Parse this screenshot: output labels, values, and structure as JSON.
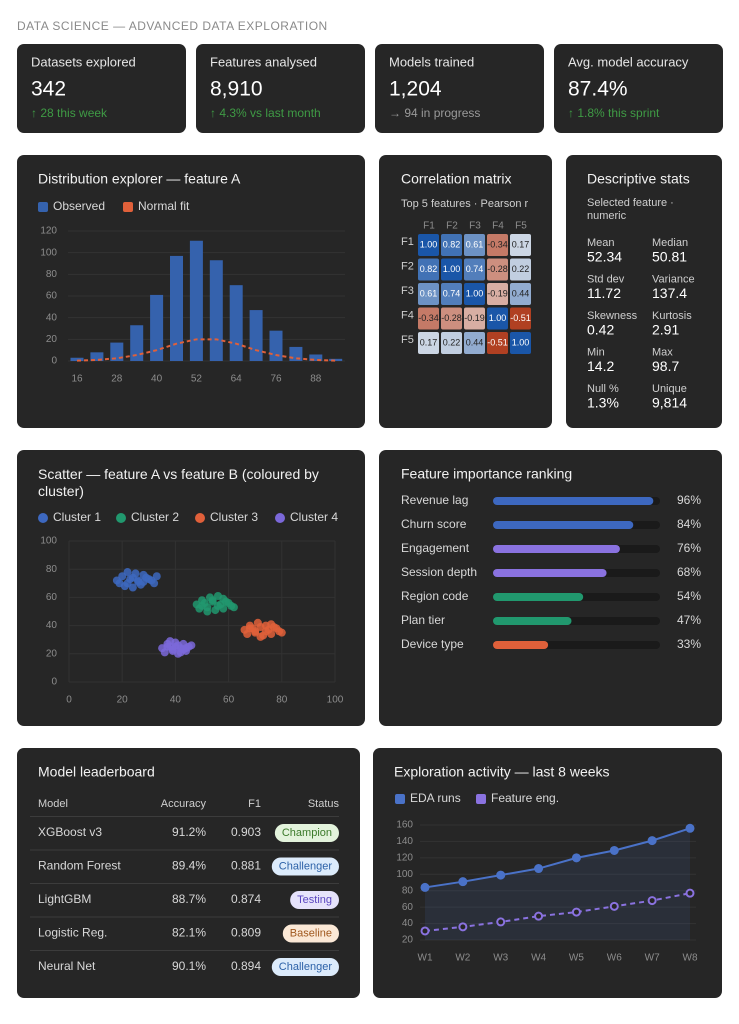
{
  "header": {
    "title": "DATA SCIENCE — ADVANCED DATA EXPLORATION"
  },
  "kpis": [
    {
      "label": "Datasets explored",
      "value": "342",
      "delta": "↑ 28 this week"
    },
    {
      "label": "Features analysed",
      "value": "8,910",
      "delta": "↑ 4.3% vs last month"
    },
    {
      "label": "Models trained",
      "value": "1,204",
      "delta": "→ 94 in progress"
    },
    {
      "label": "Avg. model accuracy",
      "value": "87.4%",
      "delta": "↑ 1.8% this sprint"
    }
  ],
  "stats": {
    "title": "Descriptive stats",
    "subtitle": "Selected feature · numeric",
    "items": [
      {
        "label": "Mean",
        "value": "52.34"
      },
      {
        "label": "Median",
        "value": "50.81"
      },
      {
        "label": "Std dev",
        "value": "11.72"
      },
      {
        "label": "Variance",
        "value": "137.4"
      },
      {
        "label": "Skewness",
        "value": "0.42"
      },
      {
        "label": "Kurtosis",
        "value": "2.91"
      },
      {
        "label": "Min",
        "value": "14.2"
      },
      {
        "label": "Max",
        "value": "98.7"
      },
      {
        "label": "Null %",
        "value": "1.3%"
      },
      {
        "label": "Unique",
        "value": "9,814"
      }
    ]
  },
  "leaderboard": {
    "title": "Model leaderboard",
    "columns": [
      "Model",
      "Accuracy",
      "F1",
      "Status"
    ],
    "rows": [
      [
        "XGBoost v3",
        "91.2%",
        "0.903",
        "Champion"
      ],
      [
        "Random Forest",
        "89.4%",
        "0.881",
        "Challenger"
      ],
      [
        "LightGBM",
        "88.7%",
        "0.874",
        "Testing"
      ],
      [
        "Logistic Reg.",
        "82.1%",
        "0.809",
        "Baseline"
      ],
      [
        "Neural Net",
        "90.1%",
        "0.894",
        "Challenger"
      ]
    ]
  },
  "chart_data": [
    {
      "type": "bar",
      "title": "Distribution explorer — feature A",
      "categories": [
        16,
        null,
        28,
        null,
        40,
        null,
        52,
        null,
        64,
        null,
        76,
        null,
        88,
        null
      ],
      "series": [
        {
          "name": "Observed",
          "color": "#3562ad",
          "values": [
            3,
            8,
            17,
            33,
            61,
            97,
            111,
            93,
            70,
            47,
            28,
            13,
            6,
            2
          ]
        },
        {
          "name": "Normal fit",
          "color": "#e0603a",
          "style": "dashed",
          "values": [
            0.3,
            1,
            2.5,
            5.5,
            10,
            16,
            20,
            20,
            16,
            10,
            5.5,
            2.5,
            1,
            0.3
          ]
        }
      ],
      "ylim": [
        0,
        120
      ],
      "yticks": [
        0,
        20,
        40,
        60,
        80,
        100,
        120
      ],
      "grid": true
    },
    {
      "type": "heatmap",
      "title": "Correlation matrix",
      "subtitle": "Top 5 features · Pearson r",
      "x": [
        "F1",
        "F2",
        "F3",
        "F4",
        "F5"
      ],
      "y": [
        "F1",
        "F2",
        "F3",
        "F4",
        "F5"
      ],
      "values": [
        [
          1,
          0.82,
          0.61,
          -0.34,
          0.17
        ],
        [
          0.82,
          1,
          0.74,
          -0.28,
          0.22
        ],
        [
          0.61,
          0.74,
          1,
          -0.19,
          0.44
        ],
        [
          -0.34,
          -0.28,
          -0.19,
          1,
          -0.51
        ],
        [
          0.17,
          0.22,
          0.44,
          -0.51,
          1
        ]
      ],
      "value_labels": [
        [
          "1.00",
          "0.82",
          "0.61",
          "-0.34",
          "0.17"
        ],
        [
          "0.82",
          "1.00",
          "0.74",
          "-0.28",
          "0.22"
        ],
        [
          "0.61",
          "0.74",
          "1.00",
          "-0.19",
          "0.44"
        ],
        [
          "-0.34",
          "-0.28",
          "-0.19",
          "1.00",
          "-0.51"
        ],
        [
          "0.17",
          "0.22",
          "0.44",
          "-0.51",
          "1.00"
        ]
      ]
    },
    {
      "type": "scatter",
      "title": "Scatter — feature A vs feature B (coloured by cluster)",
      "series": [
        {
          "name": "Cluster 1",
          "color": "#3d68c0",
          "x": [
            18,
            20,
            22,
            24,
            26,
            28,
            30,
            32,
            21,
            23,
            25,
            27,
            29,
            31,
            19,
            24,
            28,
            33,
            22,
            26
          ],
          "y": [
            72,
            75,
            70,
            74,
            71,
            76,
            73,
            70,
            68,
            73,
            77,
            69,
            74,
            72,
            70,
            67,
            71,
            75,
            78,
            72
          ]
        },
        {
          "name": "Cluster 2",
          "color": "#21986e",
          "x": [
            48,
            50,
            52,
            54,
            56,
            58,
            60,
            62,
            49,
            51,
            53,
            55,
            57,
            59,
            61,
            50,
            54,
            58,
            52,
            56
          ],
          "y": [
            55,
            58,
            53,
            57,
            54,
            59,
            56,
            53,
            52,
            56,
            60,
            51,
            55,
            57,
            54,
            54,
            58,
            52,
            50,
            61
          ]
        },
        {
          "name": "Cluster 3",
          "color": "#e0603a",
          "x": [
            66,
            68,
            70,
            72,
            74,
            76,
            78,
            80,
            67,
            69,
            71,
            73,
            75,
            77,
            79,
            70,
            74,
            72,
            68,
            76
          ],
          "y": [
            37,
            40,
            35,
            39,
            36,
            41,
            38,
            35,
            34,
            38,
            42,
            33,
            37,
            39,
            36,
            36,
            40,
            32,
            38,
            34
          ]
        },
        {
          "name": "Cluster 4",
          "color": "#7b68d9",
          "x": [
            35,
            37,
            39,
            41,
            43,
            45,
            36,
            38,
            40,
            42,
            44,
            46,
            37,
            41,
            43,
            39,
            40,
            38,
            42,
            44
          ],
          "y": [
            24,
            27,
            22,
            26,
            23,
            25,
            21,
            25,
            28,
            24,
            22,
            26,
            25,
            20,
            27,
            23,
            25,
            29,
            21,
            24
          ]
        }
      ],
      "xlim": [
        0,
        100
      ],
      "xticks": [
        0,
        20,
        40,
        60,
        80,
        100
      ],
      "ylim": [
        0,
        100
      ],
      "yticks": [
        0,
        20,
        40,
        60,
        80,
        100
      ],
      "grid": true
    },
    {
      "type": "hbar",
      "title": "Feature importance ranking",
      "categories": [
        "Revenue lag",
        "Churn score",
        "Engagement",
        "Session depth",
        "Region code",
        "Plan tier",
        "Device type"
      ],
      "values": [
        96,
        84,
        76,
        68,
        54,
        47,
        33
      ],
      "value_labels": [
        "96%",
        "84%",
        "76%",
        "68%",
        "54%",
        "47%",
        "33%"
      ],
      "colors": [
        "#3d68c0",
        "#3d68c0",
        "#8a72e0",
        "#8a72e0",
        "#21986e",
        "#21986e",
        "#e0603a"
      ],
      "xlim": [
        0,
        100
      ]
    },
    {
      "type": "line",
      "title": "Exploration activity — last 8 weeks",
      "categories": [
        "W1",
        "W2",
        "W3",
        "W4",
        "W5",
        "W6",
        "W7",
        "W8"
      ],
      "series": [
        {
          "name": "EDA runs",
          "color": "#4a72c8",
          "values": [
            84,
            91,
            99,
            107,
            120,
            129,
            141,
            156
          ]
        },
        {
          "name": "Feature eng.",
          "color": "#8a72e0",
          "style": "dashed",
          "values": [
            31,
            36,
            42,
            49,
            54,
            61,
            68,
            77
          ]
        }
      ],
      "ylim": [
        20,
        160
      ],
      "yticks": [
        20,
        40,
        60,
        80,
        100,
        120,
        140,
        160
      ],
      "grid": true
    }
  ]
}
